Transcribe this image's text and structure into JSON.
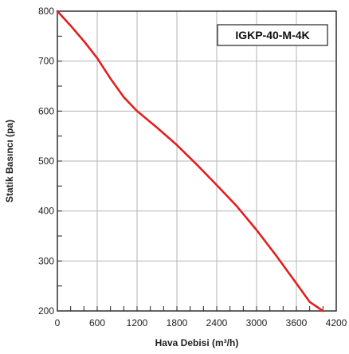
{
  "chart_data": {
    "type": "line",
    "title": "",
    "xlabel": "Hava Debisi (m³/h)",
    "ylabel": "Statik Basıncı (pa)",
    "xlim": [
      0,
      4200
    ],
    "ylim": [
      200,
      800
    ],
    "x_ticks": [
      0,
      600,
      1200,
      1800,
      2400,
      3000,
      3600,
      4200
    ],
    "y_ticks": [
      200,
      300,
      400,
      500,
      600,
      700,
      800
    ],
    "x_tick_labels": [
      "0",
      "600",
      "1200",
      "1800",
      "2400",
      "3000",
      "3600",
      "4200"
    ],
    "y_tick_labels": [
      "200",
      "300",
      "400",
      "500",
      "600",
      "700",
      "800"
    ],
    "grid": true,
    "legend_placement": "top-right",
    "series": [
      {
        "name": "IGKP-40-M-4K",
        "color": "#e02020",
        "x": [
          0,
          200,
          400,
          600,
          800,
          1000,
          1200,
          1500,
          1800,
          2100,
          2400,
          2700,
          3000,
          3300,
          3600,
          3800,
          4000
        ],
        "y": [
          800,
          771,
          740,
          706,
          665,
          628,
          600,
          567,
          532,
          493,
          452,
          410,
          362,
          310,
          255,
          218,
          200
        ]
      }
    ]
  }
}
